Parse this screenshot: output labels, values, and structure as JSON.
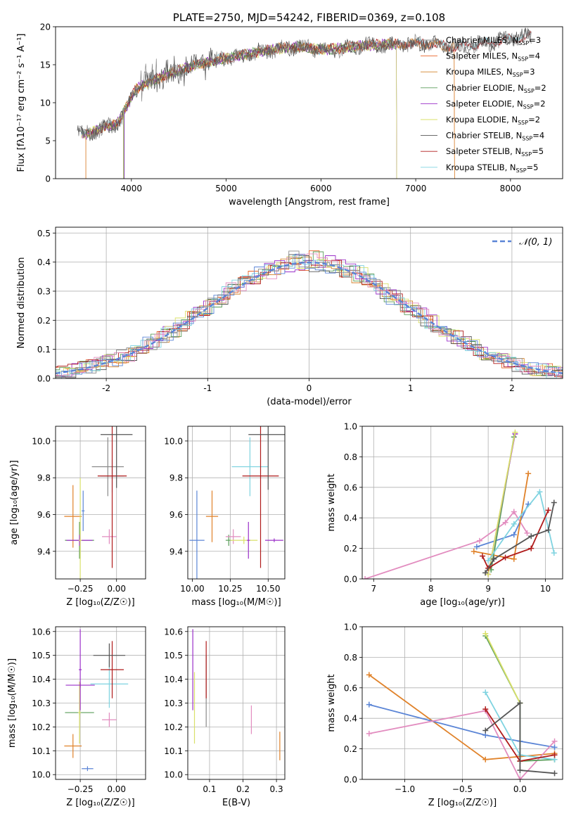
{
  "colors": {
    "C_MILES": "#8a8a8a",
    "S_MILES": "#e8652a",
    "K_MILES": "#d4822a",
    "C_ELODIE": "#5a9e5a",
    "S_ELODIE": "#9b30c9",
    "K_ELODIE": "#d9e06a",
    "C_STELIB": "#555555",
    "S_STELIB": "#b01c1c",
    "K_STELIB": "#7fd3e0",
    "blue": "#5b85d6",
    "pink": "#e28cbf",
    "orange": "#e0822a",
    "grid": "#b0b0b0"
  },
  "chart_data": [
    {
      "id": "spectrum",
      "type": "line",
      "title": "PLATE=2750, MJD=54242, FIBERID=0369, z=0.108",
      "xlabel": "wavelength [Angstrom, rest frame]",
      "ylabel": "Flux [fλ10⁻¹⁷ erg cm⁻² s⁻¹ A⁻¹]",
      "xlim": [
        3200,
        8550
      ],
      "ylim": [
        0,
        20
      ],
      "xticks": [
        4000,
        5000,
        6000,
        7000,
        8000
      ],
      "yticks": [
        0,
        5,
        10,
        15,
        20
      ],
      "grid": false,
      "legend_position": "top-right",
      "continuum": {
        "x": [
          3430,
          3520,
          3600,
          3700,
          3800,
          3870,
          3950,
          4050,
          4200,
          4400,
          4600,
          4800,
          5000,
          5200,
          5400,
          5600,
          5800,
          6000,
          6200,
          6400,
          6600,
          6800,
          7000,
          7200,
          7400,
          7600,
          7800,
          8000,
          8200
        ],
        "y": [
          6.2,
          5.8,
          6.2,
          6.7,
          7.0,
          7.5,
          9.5,
          11.8,
          12.8,
          13.8,
          14.6,
          15.3,
          15.9,
          16.3,
          16.8,
          17.2,
          17.3,
          17.0,
          17.1,
          17.5,
          17.6,
          17.7,
          17.8,
          17.7,
          17.3,
          17.6,
          17.9,
          18.4,
          18.8
        ]
      },
      "series": [
        {
          "name": "Chabrier MILES",
          "nssp": "3"
        },
        {
          "name": "Salpeter MILES",
          "nssp": "4"
        },
        {
          "name": "Kroupa MILES",
          "nssp": "3"
        },
        {
          "name": "Chabrier ELODIE",
          "nssp": "2"
        },
        {
          "name": "Salpeter ELODIE",
          "nssp": "2"
        },
        {
          "name": "Kroupa ELODIE",
          "nssp": "2"
        },
        {
          "name": "Chabrier STELIB",
          "nssp": "4"
        },
        {
          "name": "Salpeter STELIB",
          "nssp": "5"
        },
        {
          "name": "Kroupa STELIB",
          "nssp": "5"
        }
      ]
    },
    {
      "id": "residuals",
      "type": "line",
      "xlabel": "(data-model)/error",
      "ylabel": "Normed distribution",
      "xlim": [
        -2.5,
        2.5
      ],
      "ylim": [
        0,
        0.52
      ],
      "xticks": [
        -2,
        -1,
        0,
        1,
        2
      ],
      "yticks": [
        0.0,
        0.1,
        0.2,
        0.3,
        0.4,
        0.5
      ],
      "grid": true,
      "legend": "𝒩(0, 1)",
      "legend_position": "top-right",
      "bin_width": 0.1
    },
    {
      "id": "age_Z",
      "type": "scatter",
      "xlabel": "Z [log₁₀(Z/Z☉)]",
      "ylabel": "age  [log₁₀(age/yr)]",
      "xlim": [
        -0.42,
        0.2
      ],
      "ylim": [
        9.25,
        10.08
      ],
      "xticks": [
        -0.25,
        0.0
      ],
      "xticklabels": [
        "−0.25",
        "0.00"
      ],
      "yticks": [
        9.4,
        9.6,
        9.8,
        10.0
      ],
      "grid": true,
      "points": [
        {
          "x": -0.3,
          "y": 9.59,
          "xerr": 0.06,
          "yerr": 0.17,
          "color": "orange"
        },
        {
          "x": -0.23,
          "y": 9.62,
          "xerr": 0.01,
          "yerr": 0.11,
          "color": "blue"
        },
        {
          "x": -0.255,
          "y": 9.46,
          "xerr": 0.1,
          "yerr": 0.1,
          "color": "C_ELODIE"
        },
        {
          "x": -0.255,
          "y": 9.46,
          "xerr": 0.09,
          "yerr": 0.03,
          "color": "S_ELODIE"
        },
        {
          "x": -0.25,
          "y": 9.46,
          "xerr": 0.01,
          "yerr": 0.34,
          "color": "K_ELODIE"
        },
        {
          "x": -0.05,
          "y": 9.48,
          "xerr": 0.05,
          "yerr": 0.04,
          "color": "pink"
        },
        {
          "x": -0.03,
          "y": 9.81,
          "xerr": 0.08,
          "yerr": 0.09,
          "color": "K_STELIB"
        },
        {
          "x": -0.06,
          "y": 9.86,
          "xerr": 0.11,
          "yerr": 0.16,
          "color": "C_MILES"
        },
        {
          "x": -0.03,
          "y": 9.81,
          "xerr": 0.1,
          "yerr": 0.5,
          "color": "S_STELIB"
        },
        {
          "x": 0.0,
          "y": 10.035,
          "xerr": 0.11,
          "yerr": 0.29,
          "color": "C_STELIB"
        }
      ]
    },
    {
      "id": "age_mass",
      "type": "scatter",
      "xlabel": "mass [log₁₀(M/M☉)]",
      "ylabel": "",
      "xlim": [
        9.97,
        10.61
      ],
      "ylim": [
        9.25,
        10.08
      ],
      "xticks": [
        10.0,
        10.25,
        10.5
      ],
      "xticklabels": [
        "10.00",
        "10.25",
        "10.50"
      ],
      "yticks": [
        9.4,
        9.6,
        9.8,
        10.0
      ],
      "grid": true,
      "points": [
        {
          "x": 10.03,
          "y": 9.46,
          "xerr": 0.05,
          "yerr": 0.27,
          "color": "blue"
        },
        {
          "x": 10.13,
          "y": 9.59,
          "xerr": 0.04,
          "yerr": 0.14,
          "color": "orange"
        },
        {
          "x": 10.24,
          "y": 9.46,
          "xerr": 0.02,
          "yerr": 0.03,
          "color": "C_ELODIE"
        },
        {
          "x": 10.27,
          "y": 9.48,
          "xerr": 0.05,
          "yerr": 0.04,
          "color": "pink"
        },
        {
          "x": 10.34,
          "y": 9.46,
          "xerr": 0.09,
          "yerr": 0.02,
          "color": "K_ELODIE"
        },
        {
          "x": 10.37,
          "y": 9.46,
          "xerr": 0.01,
          "yerr": 0.1,
          "color": "S_ELODIE"
        },
        {
          "x": 10.38,
          "y": 9.86,
          "xerr": 0.12,
          "yerr": 0.16,
          "color": "K_STELIB"
        },
        {
          "x": 10.45,
          "y": 9.81,
          "xerr": 0.12,
          "yerr": 0.5,
          "color": "S_STELIB"
        },
        {
          "x": 10.5,
          "y": 10.035,
          "xerr": 0.13,
          "yerr": 0.3,
          "color": "C_STELIB"
        },
        {
          "x": 10.54,
          "y": 9.46,
          "xerr": 0.06,
          "yerr": 0.01,
          "color": "S_ELODIE"
        }
      ]
    },
    {
      "id": "mw_age",
      "type": "line",
      "xlabel": "age  [log₁₀(age/yr)]",
      "ylabel": "mass weight",
      "xlim": [
        6.8,
        10.3
      ],
      "ylim": [
        0,
        1
      ],
      "xticks": [
        7,
        8,
        9,
        10
      ],
      "yticks": [
        0.0,
        0.2,
        0.4,
        0.6,
        0.8,
        1.0
      ],
      "grid": true,
      "lines": [
        {
          "color": "pink",
          "pts": [
            [
              6.85,
              0.0
            ],
            [
              8.85,
              0.25
            ],
            [
              9.3,
              0.37
            ],
            [
              9.45,
              0.44
            ],
            [
              9.68,
              0.3
            ]
          ]
        },
        {
          "color": "blue",
          "pts": [
            [
              8.8,
              0.21
            ],
            [
              9.45,
              0.29
            ],
            [
              9.7,
              0.49
            ]
          ]
        },
        {
          "color": "orange",
          "pts": [
            [
              8.75,
              0.18
            ],
            [
              9.45,
              0.13
            ],
            [
              9.7,
              0.69
            ]
          ]
        },
        {
          "color": "C_ELODIE",
          "pts": [
            [
              9.05,
              0.06
            ],
            [
              9.45,
              0.93
            ]
          ]
        },
        {
          "color": "S_ELODIE",
          "pts": [
            [
              9.0,
              0.03
            ],
            [
              9.47,
              0.95
            ]
          ]
        },
        {
          "color": "K_ELODIE",
          "pts": [
            [
              9.0,
              0.03
            ],
            [
              9.47,
              0.96
            ]
          ]
        },
        {
          "color": "K_STELIB",
          "pts": [
            [
              9.0,
              0.12
            ],
            [
              9.45,
              0.36
            ],
            [
              9.9,
              0.57
            ],
            [
              10.15,
              0.17
            ]
          ]
        },
        {
          "color": "S_STELIB",
          "pts": [
            [
              8.9,
              0.15
            ],
            [
              9.0,
              0.07
            ],
            [
              9.3,
              0.14
            ],
            [
              9.75,
              0.2
            ],
            [
              10.05,
              0.45
            ]
          ]
        },
        {
          "color": "C_STELIB",
          "pts": [
            [
              8.95,
              0.04
            ],
            [
              9.1,
              0.13
            ],
            [
              9.75,
              0.28
            ],
            [
              10.05,
              0.32
            ],
            [
              10.15,
              0.5
            ]
          ]
        }
      ]
    },
    {
      "id": "mass_Z",
      "type": "scatter",
      "xlabel": "Z [log₁₀(Z/Z☉)]",
      "ylabel": "mass [log₁₀(M/M☉)]",
      "xlim": [
        -0.42,
        0.2
      ],
      "ylim": [
        9.98,
        10.62
      ],
      "xticks": [
        -0.25,
        0.0
      ],
      "xticklabels": [
        "−0.25",
        "0.00"
      ],
      "yticks": [
        10.0,
        10.1,
        10.2,
        10.3,
        10.4,
        10.5,
        10.6
      ],
      "grid": true,
      "points": [
        {
          "x": -0.3,
          "y": 10.12,
          "xerr": 0.06,
          "yerr": 0.05,
          "color": "orange"
        },
        {
          "x": -0.2,
          "y": 10.025,
          "xerr": 0.04,
          "yerr": 0.01,
          "color": "blue"
        },
        {
          "x": -0.255,
          "y": 10.26,
          "xerr": 0.1,
          "yerr": 0.01,
          "color": "C_ELODIE"
        },
        {
          "x": -0.255,
          "y": 10.26,
          "xerr": 0.01,
          "yerr": 0.13,
          "color": "K_ELODIE"
        },
        {
          "x": -0.25,
          "y": 10.44,
          "xerr": 0.01,
          "yerr": 0.17,
          "color": "S_ELODIE"
        },
        {
          "x": -0.25,
          "y": 10.375,
          "xerr": 0.1,
          "yerr": 0.01,
          "color": "S_ELODIE"
        },
        {
          "x": -0.05,
          "y": 10.23,
          "xerr": 0.05,
          "yerr": 0.03,
          "color": "pink"
        },
        {
          "x": -0.05,
          "y": 10.38,
          "xerr": 0.13,
          "yerr": 0.1,
          "color": "K_STELIB"
        },
        {
          "x": -0.03,
          "y": 10.44,
          "xerr": 0.08,
          "yerr": 0.12,
          "color": "S_STELIB"
        },
        {
          "x": -0.05,
          "y": 10.5,
          "xerr": 0.11,
          "yerr": 0.05,
          "color": "C_STELIB"
        }
      ]
    },
    {
      "id": "mass_ebv",
      "type": "scatter",
      "xlabel": "E(B-V)",
      "ylabel": "",
      "xlim": [
        0.035,
        0.325
      ],
      "ylim": [
        9.98,
        10.62
      ],
      "xticks": [
        0.1,
        0.2,
        0.3
      ],
      "yticks": [
        10.0,
        10.1,
        10.2,
        10.3,
        10.4,
        10.5,
        10.6
      ],
      "grid": true,
      "points": [
        {
          "x": 0.05,
          "y": 10.44,
          "xerr": 0.0,
          "yerr": 0.17,
          "color": "S_ELODIE"
        },
        {
          "x": 0.055,
          "y": 10.28,
          "xerr": 0.0,
          "yerr": 0.15,
          "color": "K_ELODIE"
        },
        {
          "x": 0.09,
          "y": 10.35,
          "xerr": 0.0,
          "yerr": 0.15,
          "color": "C_MILES"
        },
        {
          "x": 0.09,
          "y": 10.44,
          "xerr": 0.0,
          "yerr": 0.12,
          "color": "S_STELIB"
        },
        {
          "x": 0.225,
          "y": 10.23,
          "xerr": 0.0,
          "yerr": 0.06,
          "color": "pink"
        },
        {
          "x": 0.31,
          "y": 10.12,
          "xerr": 0.0,
          "yerr": 0.06,
          "color": "orange"
        }
      ]
    },
    {
      "id": "mw_Z",
      "type": "line",
      "xlabel": "Z [log₁₀(Z/Z☉)]",
      "ylabel": "mass weight",
      "xlim": [
        -1.37,
        0.37
      ],
      "ylim": [
        0,
        1
      ],
      "xticks": [
        -1.0,
        -0.5,
        0.0
      ],
      "xticklabels": [
        "−1.0",
        "−0.5",
        "0.0"
      ],
      "yticks": [
        0.0,
        0.2,
        0.4,
        0.6,
        0.8,
        1.0
      ],
      "grid": true,
      "lines": [
        {
          "color": "orange",
          "pts": [
            [
              -1.31,
              0.685
            ],
            [
              -0.3,
              0.13
            ],
            [
              0.0,
              0.15
            ],
            [
              0.3,
              0.17
            ]
          ]
        },
        {
          "color": "blue",
          "pts": [
            [
              -1.31,
              0.49
            ],
            [
              -0.3,
              0.29
            ],
            [
              0.0,
              0.25
            ],
            [
              0.3,
              0.21
            ]
          ]
        },
        {
          "color": "pink",
          "pts": [
            [
              -1.31,
              0.3
            ],
            [
              -0.3,
              0.45
            ],
            [
              0.0,
              0.0
            ],
            [
              0.3,
              0.25
            ]
          ]
        },
        {
          "color": "C_ELODIE",
          "pts": [
            [
              -0.3,
              0.94
            ],
            [
              0.0,
              0.5
            ],
            [
              0.0,
              0.12
            ],
            [
              0.3,
              0.13
            ]
          ]
        },
        {
          "color": "K_ELODIE",
          "pts": [
            [
              -0.3,
              0.955
            ],
            [
              0.0,
              0.5
            ]
          ]
        },
        {
          "color": "K_STELIB",
          "pts": [
            [
              -0.3,
              0.57
            ],
            [
              0.0,
              0.16
            ],
            [
              0.3,
              0.13
            ]
          ]
        },
        {
          "color": "S_STELIB",
          "pts": [
            [
              -0.3,
              0.46
            ],
            [
              0.0,
              0.12
            ],
            [
              0.3,
              0.16
            ]
          ]
        },
        {
          "color": "C_STELIB",
          "pts": [
            [
              -0.3,
              0.32
            ],
            [
              0.0,
              0.5
            ],
            [
              0.0,
              0.06
            ],
            [
              0.3,
              0.04
            ]
          ]
        }
      ]
    }
  ]
}
